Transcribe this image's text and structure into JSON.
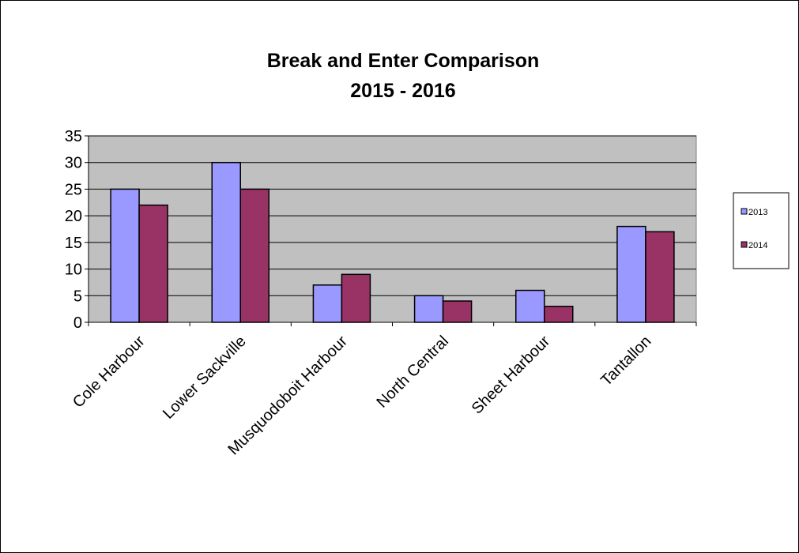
{
  "chart_data": {
    "type": "bar",
    "title": [
      "Break and Enter Comparison",
      "2015 - 2016"
    ],
    "xlabel": "",
    "ylabel": "",
    "categories": [
      "Cole Harbour",
      "Lower Sackville",
      "Musquodoboit Harbour",
      "North Central",
      "Sheet Harbour",
      "Tantallon"
    ],
    "series": [
      {
        "name": "2013",
        "color": "#9999ff",
        "values": [
          25,
          30,
          7,
          5,
          6,
          18
        ]
      },
      {
        "name": "2014",
        "color": "#993366",
        "values": [
          22,
          25,
          9,
          4,
          3,
          17
        ]
      }
    ],
    "ylim": [
      0,
      35
    ],
    "yticks": [
      0,
      5,
      10,
      15,
      20,
      25,
      30,
      35
    ],
    "grid": true,
    "plot_background": "#c0c0c0",
    "legend": "right"
  }
}
